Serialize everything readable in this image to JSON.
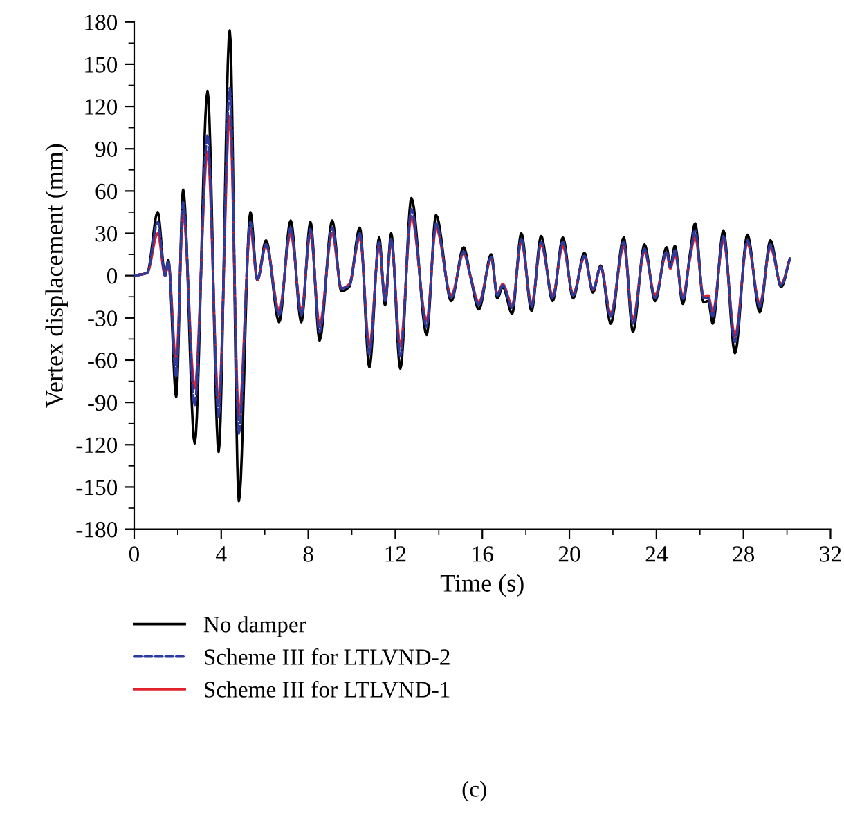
{
  "chart_data": {
    "type": "line",
    "xlabel": "Time (s)",
    "ylabel": "Vertex displacement (mm)",
    "xlim": [
      0,
      32
    ],
    "xticks": [
      0,
      4,
      8,
      12,
      16,
      20,
      24,
      28,
      32
    ],
    "ylim": [
      -180,
      180
    ],
    "yticks": [
      -180,
      -150,
      -120,
      -90,
      -60,
      -30,
      0,
      30,
      60,
      90,
      120,
      150,
      180
    ],
    "grid": false,
    "legend": "bottom left",
    "annotations": [
      "(c)"
    ],
    "x": [
      0,
      0.6,
      1.08,
      1.42,
      1.57,
      1.93,
      2.25,
      2.78,
      3.37,
      3.88,
      4.39,
      4.81,
      5.34,
      5.66,
      6.06,
      6.66,
      7.19,
      7.68,
      8.1,
      8.52,
      9.1,
      9.52,
      9.88,
      10.37,
      10.81,
      11.26,
      11.53,
      11.81,
      12.23,
      12.74,
      13.44,
      13.87,
      14.57,
      15.14,
      15.46,
      15.84,
      16.41,
      16.69,
      16.94,
      17.37,
      17.79,
      18.26,
      18.7,
      19.23,
      19.7,
      20.17,
      20.69,
      21.08,
      21.44,
      21.9,
      22.5,
      22.92,
      23.45,
      23.94,
      24.47,
      24.64,
      24.85,
      25.21,
      25.53,
      25.78,
      26.17,
      26.38,
      26.59,
      27.08,
      27.61,
      28.18,
      28.75,
      29.24,
      29.73,
      30.13
    ],
    "series": [
      {
        "name": "No damper",
        "color": "#000000",
        "line_style": "solid",
        "values": [
          0,
          2,
          45,
          0,
          11,
          -86,
          61,
          -119,
          131,
          -125,
          174,
          -160,
          45,
          -3,
          25,
          -33,
          39,
          -33,
          38,
          -46,
          39,
          -11,
          -8,
          34,
          -65,
          27,
          -21,
          30,
          -66,
          55,
          -42,
          43,
          -18,
          20,
          -1,
          -24,
          15,
          -16,
          -8,
          -27,
          30,
          -25,
          28,
          -18,
          27,
          -16,
          16,
          -12,
          7,
          -34,
          27,
          -40,
          22,
          -18,
          20,
          7,
          21,
          -20,
          14,
          37,
          -19,
          -18,
          -34,
          32,
          -55,
          29,
          -26,
          25,
          -8,
          12
        ]
      },
      {
        "name": "Scheme III for LTLVND-2",
        "color": "#2b3a9c",
        "line_style": "dashed",
        "values": [
          0,
          2,
          38,
          0,
          10,
          -72,
          52,
          -92,
          100,
          -100,
          133,
          -112,
          38,
          -3,
          22,
          -28,
          34,
          -28,
          33,
          -40,
          34,
          -9,
          -7,
          30,
          -56,
          24,
          -18,
          26,
          -57,
          47,
          -36,
          37,
          -16,
          17,
          -1,
          -21,
          13,
          -14,
          -7,
          -23,
          26,
          -22,
          24,
          -16,
          24,
          -14,
          14,
          -10,
          6,
          -29,
          24,
          -34,
          19,
          -16,
          17,
          6,
          18,
          -17,
          12,
          32,
          -16,
          -16,
          -29,
          28,
          -47,
          25,
          -22,
          22,
          -7,
          12
        ]
      },
      {
        "name": "Scheme III for LTLVND-1",
        "color": "#e0202a",
        "line_style": "solid",
        "values": [
          0,
          2,
          30,
          0,
          9,
          -62,
          44,
          -80,
          88,
          -90,
          113,
          -100,
          33,
          -3,
          22,
          -25,
          30,
          -25,
          30,
          -35,
          30,
          -9,
          -6,
          27,
          -50,
          21,
          -17,
          24,
          -50,
          42,
          -32,
          34,
          -14,
          16,
          -1,
          -19,
          12,
          -13,
          -6,
          -21,
          24,
          -20,
          22,
          -14,
          21,
          -13,
          13,
          -10,
          6,
          -27,
          21,
          -31,
          17,
          -14,
          16,
          5,
          16,
          -15,
          11,
          28,
          -15,
          -14,
          -26,
          25,
          -43,
          23,
          -20,
          20,
          -6,
          12
        ]
      }
    ]
  }
}
